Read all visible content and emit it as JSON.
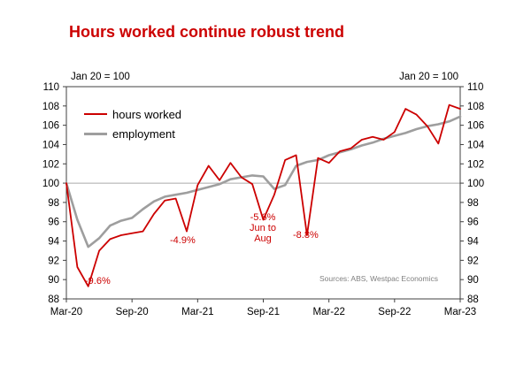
{
  "title": "Hours worked continue robust trend",
  "colors": {
    "title_red": "#cc0000",
    "hours_red": "#cc0000",
    "employment_grey": "#9e9e9e",
    "axis": "#404040",
    "reference_line": "#aaaaaa",
    "source_grey": "#7f7f7f"
  },
  "index_note_left": "Jan 20 = 100",
  "index_note_right": "Jan 20 = 100",
  "legend": {
    "items": [
      {
        "label": "hours worked"
      },
      {
        "label": "employment"
      }
    ]
  },
  "annotations": [
    {
      "text": "-9.6%"
    },
    {
      "text": "-4.9%"
    },
    {
      "text": "-5.6%\nJun to\nAug"
    },
    {
      "text": "-8.8%"
    }
  ],
  "source_note": "Sources: ABS, Westpac Economics",
  "chart_data": {
    "type": "line",
    "title": "Hours worked continue robust trend",
    "index_note": "Jan 20 = 100",
    "ylabel": "Index, Jan 20 = 100",
    "ylim": [
      88,
      110
    ],
    "y_tick_step": 2,
    "reference_line": 100,
    "grid": false,
    "legend_position": "top-left-inside",
    "x": [
      "Mar-20",
      "Apr-20",
      "May-20",
      "Jun-20",
      "Jul-20",
      "Aug-20",
      "Sep-20",
      "Oct-20",
      "Nov-20",
      "Dec-20",
      "Jan-21",
      "Feb-21",
      "Mar-21",
      "Apr-21",
      "May-21",
      "Jun-21",
      "Jul-21",
      "Aug-21",
      "Sep-21",
      "Oct-21",
      "Nov-21",
      "Dec-21",
      "Jan-22",
      "Feb-22",
      "Mar-22",
      "Apr-22",
      "May-22",
      "Jun-22",
      "Jul-22",
      "Aug-22",
      "Sep-22",
      "Oct-22",
      "Nov-22",
      "Dec-22",
      "Jan-23",
      "Feb-23",
      "Mar-23"
    ],
    "x_tick_labels": [
      "Mar-20",
      "Sep-20",
      "Mar-21",
      "Sep-21",
      "Mar-22",
      "Sep-22",
      "Mar-23"
    ],
    "x_tick_indices": [
      0,
      6,
      12,
      18,
      24,
      30,
      36
    ],
    "series": [
      {
        "name": "hours worked",
        "color": "#cc0000",
        "width": 1.8,
        "values": [
          100,
          91.3,
          89.3,
          93.0,
          94.2,
          94.6,
          94.8,
          95.0,
          96.8,
          98.2,
          98.4,
          95.0,
          99.8,
          101.8,
          100.3,
          102.1,
          100.6,
          99.9,
          96.2,
          98.8,
          102.4,
          102.9,
          94.6,
          102.6,
          102.1,
          103.3,
          103.6,
          104.5,
          104.8,
          104.5,
          105.3,
          107.7,
          107.1,
          105.9,
          104.1,
          108.1,
          107.7
        ]
      },
      {
        "name": "employment",
        "color": "#9e9e9e",
        "width": 2.6,
        "values": [
          100,
          96.2,
          93.4,
          94.3,
          95.6,
          96.1,
          96.4,
          97.3,
          98.1,
          98.6,
          98.8,
          99.0,
          99.3,
          99.6,
          99.9,
          100.4,
          100.6,
          100.8,
          100.7,
          99.4,
          99.8,
          101.8,
          102.2,
          102.4,
          102.9,
          103.2,
          103.5,
          103.9,
          104.2,
          104.6,
          104.9,
          105.2,
          105.6,
          105.9,
          106.1,
          106.4,
          106.9
        ]
      }
    ],
    "annotations": [
      {
        "text": "-9.6%",
        "near": "May-20"
      },
      {
        "text": "-4.9%",
        "near": "Feb-21"
      },
      {
        "text": "-5.6% Jun to Aug",
        "near": "Sep-21"
      },
      {
        "text": "-8.8%",
        "near": "Jan-22"
      }
    ],
    "source": "Sources: ABS, Westpac Economics"
  }
}
